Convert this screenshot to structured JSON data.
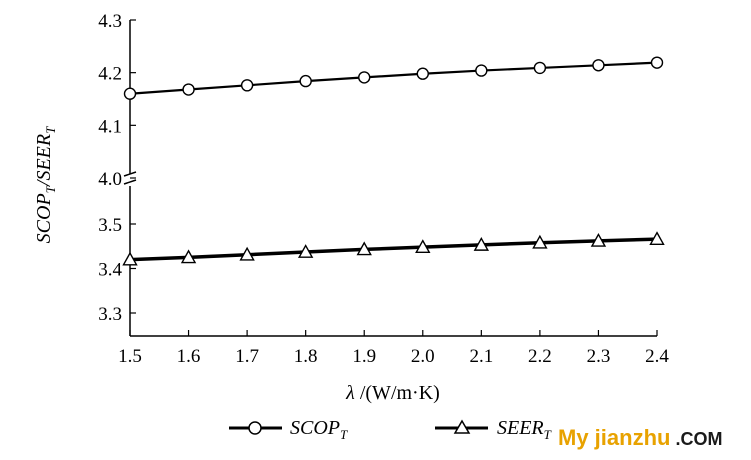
{
  "chart_data": {
    "type": "line",
    "title": "",
    "xlabel_symbol": "λ",
    "xlabel_rest": " /(W/m·K)",
    "ylabel": {
      "part1": "SCOP",
      "sub1": "T",
      "sep": "/SEER",
      "sub2": "T"
    },
    "x": [
      1.5,
      1.6,
      1.7,
      1.8,
      1.9,
      2.0,
      2.1,
      2.2,
      2.3,
      2.4
    ],
    "x_ticks": [
      "1.5",
      "1.6",
      "1.7",
      "1.8",
      "1.9",
      "2.0",
      "2.1",
      "2.2",
      "2.3",
      "2.4"
    ],
    "xlim": [
      1.5,
      2.4
    ],
    "axis_break": true,
    "upper_segment": {
      "ylim": [
        4.0,
        4.3
      ],
      "ticks": [
        "4.0",
        "4.1",
        "4.2",
        "4.3"
      ]
    },
    "lower_segment": {
      "ylim": [
        3.25,
        3.55
      ],
      "ticks": [
        "3.3",
        "3.4",
        "3.5"
      ]
    },
    "series": [
      {
        "name": "SCOP",
        "name_sub": "T",
        "marker": "circle",
        "segment": "upper",
        "values": [
          4.16,
          4.168,
          4.176,
          4.184,
          4.191,
          4.198,
          4.204,
          4.209,
          4.214,
          4.219
        ]
      },
      {
        "name": "SEER",
        "name_sub": "T",
        "marker": "triangle",
        "segment": "lower",
        "values": [
          3.42,
          3.425,
          3.431,
          3.437,
          3.443,
          3.448,
          3.453,
          3.458,
          3.462,
          3.466
        ]
      }
    ],
    "grid": false,
    "legend_position": "bottom"
  },
  "watermark": {
    "part1": "My jianzhu",
    "part2": " .COM",
    "color1": "#e8a200",
    "color2": "#1a1a1a"
  }
}
